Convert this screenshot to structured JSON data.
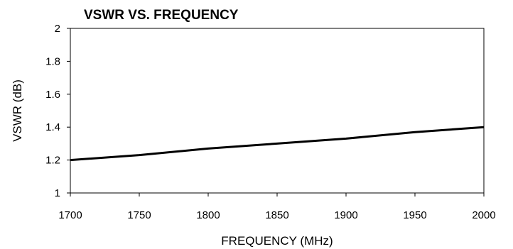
{
  "chart_data": {
    "type": "line",
    "title": "VSWR VS. FREQUENCY",
    "xlabel": "FREQUENCY (MHz)",
    "ylabel": "VSWR (dB)",
    "xlim": [
      1700,
      2000
    ],
    "ylim": [
      1,
      2
    ],
    "xticks": [
      "1700",
      "1750",
      "1800",
      "1850",
      "1900",
      "1950",
      "2000"
    ],
    "yticks": [
      "1",
      "1.2",
      "1.4",
      "1.6",
      "1.8",
      "2"
    ],
    "grid": false,
    "series": [
      {
        "color": "#000000",
        "x": [
          1700,
          1750,
          1800,
          1850,
          1900,
          1950,
          2000
        ],
        "y": [
          1.2,
          1.23,
          1.27,
          1.3,
          1.33,
          1.37,
          1.4
        ]
      }
    ]
  }
}
